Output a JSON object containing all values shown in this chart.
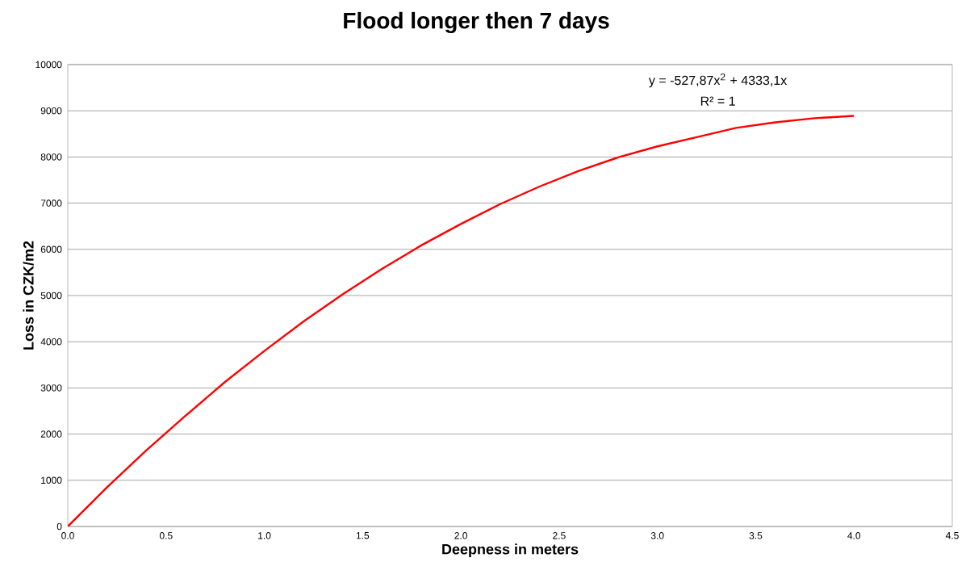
{
  "chart_data": {
    "type": "line",
    "title": "Flood longer then 7 days",
    "xlabel": "Deepness in meters",
    "ylabel": "Loss in CZK/m2",
    "x": [
      0,
      0.2,
      0.4,
      0.6,
      0.8,
      1.0,
      1.2,
      1.4,
      1.6,
      1.8,
      2.0,
      2.2,
      2.4,
      2.6,
      2.8,
      3.0,
      3.2,
      3.4,
      3.6,
      3.8,
      4.0
    ],
    "series": [
      {
        "color": "#ff0000",
        "values": [
          0,
          850,
          1650,
          2400,
          3130,
          3800,
          4440,
          5030,
          5580,
          6090,
          6550,
          6980,
          7360,
          7700,
          7990,
          8230,
          8430,
          8630,
          8750,
          8840,
          8890
        ]
      }
    ],
    "xlim": [
      0,
      4.5
    ],
    "xticks": [
      {
        "value": 0,
        "label": "0.0"
      },
      {
        "value": 0.5,
        "label": "0.5"
      },
      {
        "value": 1,
        "label": "1.0"
      },
      {
        "value": 1.5,
        "label": "1.5"
      },
      {
        "value": 2,
        "label": "2.0"
      },
      {
        "value": 2.5,
        "label": "2.5"
      },
      {
        "value": 3,
        "label": "3.0"
      },
      {
        "value": 3.5,
        "label": "3.5"
      },
      {
        "value": 4,
        "label": "4.0"
      },
      {
        "value": 4.5,
        "label": "4.5"
      }
    ],
    "ylim": [
      0,
      10000
    ],
    "yticks": [
      0,
      1000,
      2000,
      3000,
      4000,
      5000,
      6000,
      7000,
      8000,
      9000,
      10000
    ],
    "grid": "y",
    "marker": "none",
    "line_style": "solid",
    "annotations": [
      "y = -527,87x$^{2}$ + 4333,1x",
      "R² = 1"
    ]
  }
}
